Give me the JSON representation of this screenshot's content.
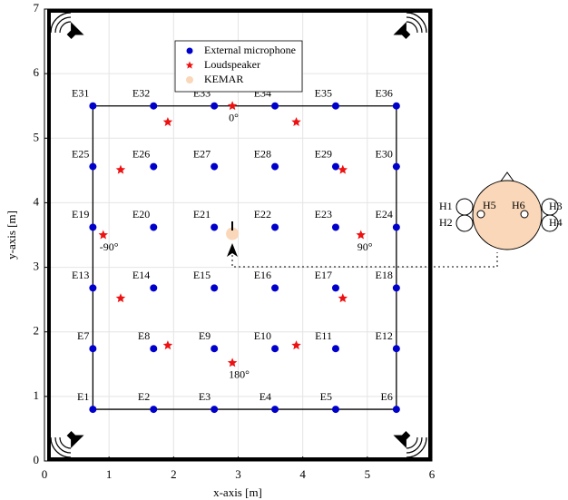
{
  "chart_data": {
    "type": "scatter",
    "xlabel": "x-axis [m]",
    "ylabel": "y-axis [m]",
    "xlim": [
      0,
      6
    ],
    "ylim": [
      0,
      7
    ],
    "xticks": [
      0,
      1,
      2,
      3,
      4,
      5,
      6
    ],
    "yticks": [
      0,
      1,
      2,
      3,
      4,
      5,
      6,
      7
    ],
    "grid": true,
    "legend": "upper center",
    "series": [
      {
        "name": "External microphone",
        "color": "#0000cc",
        "x": [
          0.75,
          1.69,
          2.63,
          3.57,
          4.51,
          5.45,
          0.75,
          1.69,
          2.63,
          3.57,
          4.51,
          5.45,
          0.75,
          1.69,
          2.63,
          3.57,
          4.51,
          5.45,
          0.75,
          1.69,
          2.63,
          3.57,
          4.51,
          5.45,
          0.75,
          1.69,
          2.63,
          3.57,
          4.51,
          5.45,
          0.75,
          1.69,
          2.63,
          3.57,
          4.51,
          5.45
        ],
        "y": [
          0.8,
          0.8,
          0.8,
          0.8,
          0.8,
          0.8,
          1.74,
          1.74,
          1.74,
          1.74,
          1.74,
          1.74,
          2.68,
          2.68,
          2.68,
          2.68,
          2.68,
          2.68,
          3.62,
          3.62,
          3.62,
          3.62,
          3.62,
          3.62,
          4.56,
          4.56,
          4.56,
          4.56,
          4.56,
          4.56,
          5.5,
          5.5,
          5.5,
          5.5,
          5.5,
          5.5
        ],
        "labels": [
          "E1",
          "E2",
          "E3",
          "E4",
          "E5",
          "E6",
          "E7",
          "E8",
          "E9",
          "E10",
          "E11",
          "E12",
          "E13",
          "E14",
          "E15",
          "E16",
          "E17",
          "E18",
          "E19",
          "E20",
          "E21",
          "E22",
          "E23",
          "E24",
          "E25",
          "E26",
          "E27",
          "E28",
          "E29",
          "E30",
          "E31",
          "E32",
          "E33",
          "E34",
          "E35",
          "E36"
        ]
      },
      {
        "name": "Loudspeaker",
        "color": "#ee1111",
        "x": [
          2.91,
          3.9,
          4.62,
          4.9,
          4.62,
          3.9,
          2.91,
          1.91,
          1.18,
          0.91,
          1.18,
          1.91
        ],
        "y": [
          5.5,
          5.25,
          4.51,
          3.5,
          2.52,
          1.79,
          1.52,
          1.79,
          2.52,
          3.5,
          4.51,
          5.25
        ],
        "labels": [
          "0°",
          null,
          null,
          "90°",
          null,
          null,
          "180°",
          null,
          null,
          "-90°",
          null,
          null
        ]
      },
      {
        "name": "KEMAR",
        "color": "#fad7b8",
        "x": [
          2.91
        ],
        "y": [
          3.52
        ]
      }
    ]
  },
  "kemar_diagram": {
    "labels": [
      "H1",
      "H2",
      "H3",
      "H4",
      "H5",
      "H6"
    ]
  }
}
